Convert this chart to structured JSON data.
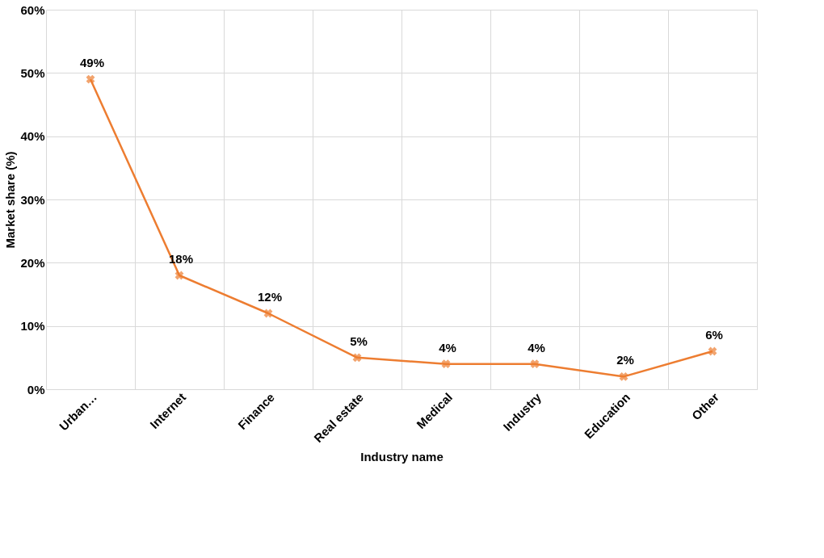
{
  "chart_data": {
    "type": "line",
    "categories": [
      "Urban…",
      "Internet",
      "Finance",
      "Real estate",
      "Medical",
      "Industry",
      "Education",
      "Other"
    ],
    "series": [
      {
        "color": "#ed7d31",
        "values": [
          49,
          18,
          12,
          5,
          4,
          4,
          2,
          6
        ],
        "value_labels": [
          "49%",
          "18%",
          "12%",
          "5%",
          "4%",
          "4%",
          "2%",
          "6%"
        ]
      }
    ],
    "xlabel": "Industry name",
    "ylabel": "Market share (%)",
    "ylim": [
      0,
      60
    ],
    "yticks": [
      {
        "value": 0,
        "label": "0%"
      },
      {
        "value": 10,
        "label": "10%"
      },
      {
        "value": 20,
        "label": "20%"
      },
      {
        "value": 30,
        "label": "30%"
      },
      {
        "value": 40,
        "label": "40%"
      },
      {
        "value": 50,
        "label": "50%"
      },
      {
        "value": 60,
        "label": "60%"
      }
    ],
    "grid": true,
    "marker": "cross",
    "line_style": "solid",
    "legend": false
  }
}
